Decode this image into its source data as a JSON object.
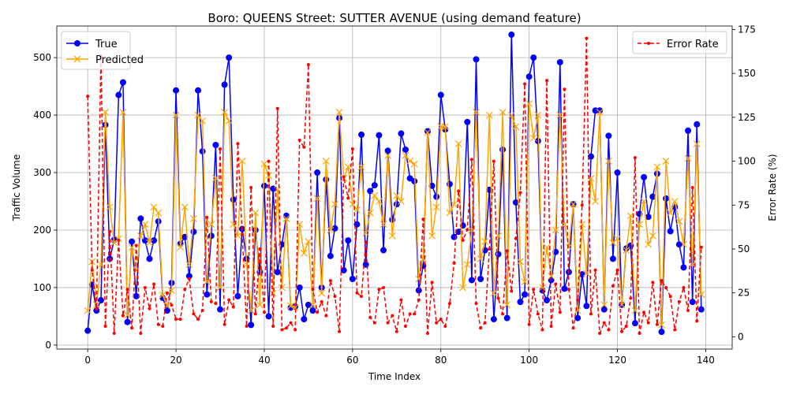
{
  "chart_data": {
    "type": "line",
    "title": "Boro: QUEENS Street: SUTTER AVENUE (using demand feature)",
    "xlabel": "Time Index",
    "ylabel": "Traffic Volume",
    "y2label": "Error Rate (%)",
    "xlim": [
      -7,
      146
    ],
    "ylim": [
      -7,
      555
    ],
    "y2lim": [
      -7,
      177
    ],
    "x_ticks": [
      0,
      20,
      40,
      60,
      80,
      100,
      120,
      140
    ],
    "y_ticks": [
      0,
      100,
      200,
      300,
      400,
      500
    ],
    "y2_ticks": [
      0,
      25,
      50,
      75,
      100,
      125,
      150,
      175
    ],
    "grid": true,
    "legend_left": {
      "placement": "upper-left",
      "entries": [
        "True",
        "Predicted"
      ]
    },
    "legend_right": {
      "placement": "upper-right",
      "entries": [
        "Error Rate"
      ]
    },
    "colors": {
      "true": "#0000ff",
      "predicted": "#ffa500",
      "error": "#ff0000"
    },
    "series": [
      {
        "name": "True",
        "axis": "left",
        "values": [
          25,
          105,
          60,
          78,
          383,
          150,
          183,
          435,
          457,
          40,
          180,
          85,
          220,
          182,
          150,
          182,
          215,
          82,
          60,
          108,
          443,
          176,
          188,
          120,
          197,
          443,
          337,
          88,
          190,
          348,
          62,
          453,
          500,
          253,
          85,
          202,
          150,
          35,
          200,
          127,
          277,
          50,
          272,
          127,
          175,
          225,
          65,
          67,
          100,
          45,
          70,
          60,
          300,
          100,
          288,
          155,
          203,
          395,
          130,
          182,
          115,
          210,
          366,
          140,
          268,
          278,
          365,
          165,
          338,
          218,
          245,
          368,
          340,
          290,
          285,
          95,
          138,
          372,
          277,
          258,
          435,
          375,
          280,
          188,
          197,
          208,
          388,
          113,
          497,
          115,
          165,
          270,
          45,
          158,
          340,
          47,
          540,
          248,
          75,
          88,
          467,
          500,
          355,
          95,
          78,
          113,
          162,
          492,
          98,
          127,
          245,
          47,
          123,
          68,
          328,
          408,
          408,
          62,
          364,
          150,
          300,
          70,
          168,
          173,
          38,
          228,
          292,
          223,
          258,
          298,
          23,
          255,
          198,
          240,
          175,
          135,
          373,
          75,
          384,
          62
        ]
      },
      {
        "name": "Predicted",
        "axis": "left",
        "values": [
          60,
          145,
          70,
          140,
          405,
          240,
          178,
          185,
          405,
          52,
          170,
          130,
          190,
          210,
          178,
          240,
          230,
          87,
          68,
          95,
          400,
          170,
          240,
          140,
          220,
          400,
          390,
          110,
          210,
          290,
          100,
          405,
          390,
          210,
          190,
          320,
          140,
          60,
          230,
          70,
          315,
          295,
          90,
          270,
          100,
          220,
          68,
          65,
          210,
          160,
          180,
          70,
          255,
          90,
          320,
          200,
          245,
          405,
          290,
          310,
          245,
          235,
          310,
          195,
          230,
          260,
          250,
          210,
          330,
          190,
          260,
          250,
          330,
          320,
          315,
          115,
          150,
          370,
          190,
          240,
          380,
          380,
          230,
          245,
          350,
          100,
          140,
          200,
          405,
          150,
          180,
          400,
          90,
          190,
          405,
          70,
          400,
          380,
          145,
          110,
          420,
          360,
          400,
          100,
          170,
          120,
          200,
          400,
          210,
          170,
          245,
          60,
          210,
          125,
          290,
          250,
          405,
          70,
          320,
          178,
          185,
          70,
          165,
          225,
          60,
          210,
          250,
          175,
          190,
          310,
          35,
          320,
          230,
          250,
          215,
          175,
          325,
          140,
          350,
          88
        ]
      },
      {
        "name": "Error Rate",
        "axis": "right",
        "values": [
          137,
          38,
          16,
          160,
          6,
          60,
          2,
          55,
          12,
          27,
          5,
          52,
          2,
          28,
          16,
          30,
          7,
          6,
          25,
          18,
          10,
          10,
          27,
          33,
          13,
          10,
          15,
          68,
          20,
          19,
          107,
          7,
          21,
          17,
          110,
          58,
          6,
          85,
          13,
          50,
          14,
          100,
          6,
          130,
          4,
          5,
          8,
          4,
          112,
          108,
          155,
          27,
          14,
          20,
          12,
          32,
          23,
          3,
          91,
          79,
          107,
          25,
          23,
          54,
          11,
          8,
          27,
          28,
          8,
          12,
          3,
          21,
          6,
          13,
          13,
          21,
          67,
          2,
          31,
          8,
          10,
          6,
          19,
          42,
          83,
          55,
          61,
          101,
          19,
          5,
          8,
          50,
          100,
          22,
          13,
          49,
          26,
          56,
          82,
          144,
          7,
          27,
          13,
          4,
          146,
          6,
          30,
          14,
          141,
          27,
          5,
          21,
          75,
          170,
          13,
          38,
          2,
          8,
          4,
          29,
          38,
          3,
          6,
          22,
          102,
          2,
          14,
          8,
          31,
          7,
          32,
          28,
          23,
          4,
          20,
          28,
          15,
          85,
          9,
          51
        ]
      }
    ]
  }
}
